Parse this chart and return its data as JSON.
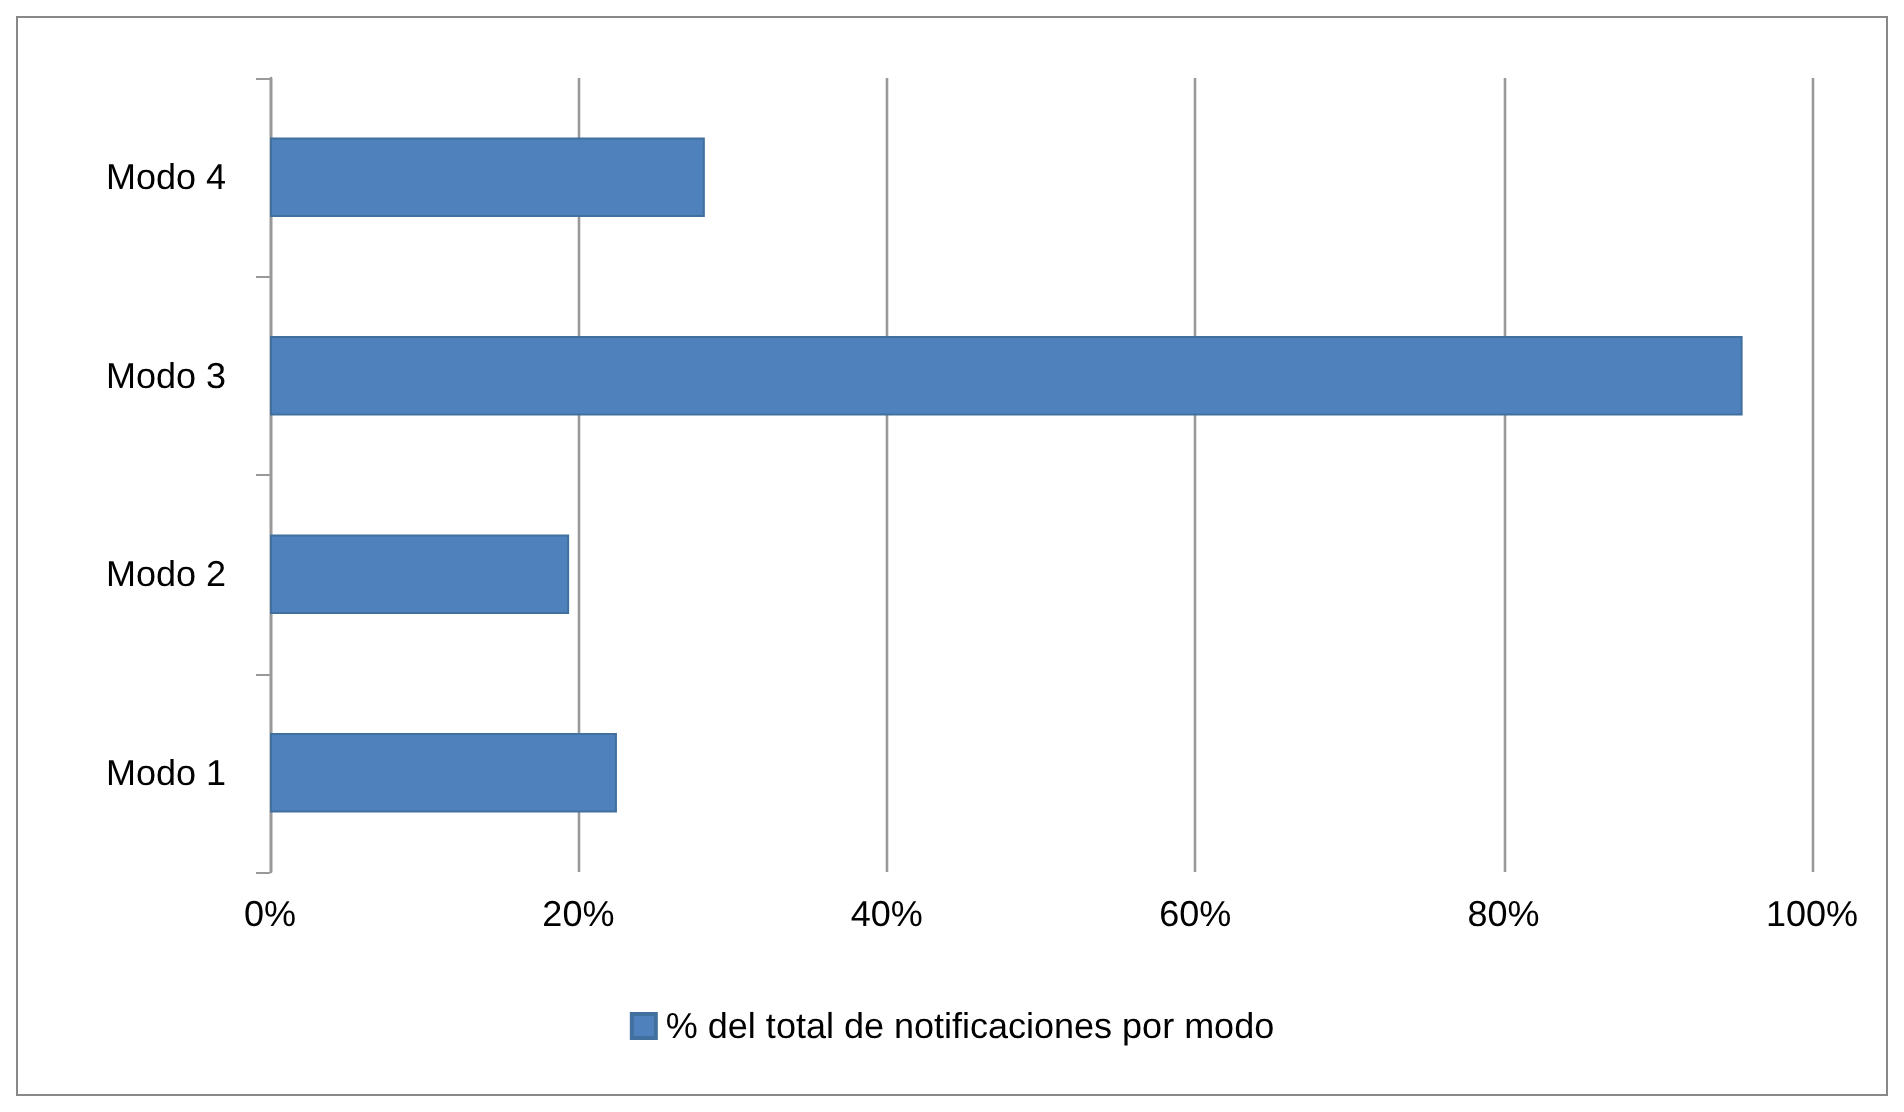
{
  "chart_data": {
    "type": "bar",
    "orientation": "horizontal",
    "categories": [
      "Modo 4",
      "Modo 3",
      "Modo 2",
      "Modo 1"
    ],
    "series": [
      {
        "name": "% del total de notificaciones por modo",
        "color": "#4f81bd",
        "values": [
          28.2,
          95.5,
          19.4,
          22.5
        ]
      }
    ],
    "xlim": [
      0,
      100
    ],
    "xticks": [
      {
        "value": 0,
        "label": "0%"
      },
      {
        "value": 20,
        "label": "20%"
      },
      {
        "value": 40,
        "label": "40%"
      },
      {
        "value": 60,
        "label": "60%"
      },
      {
        "value": 80,
        "label": "80%"
      },
      {
        "value": 100,
        "label": "100%"
      }
    ],
    "grid": "x",
    "legend": "bottom"
  }
}
